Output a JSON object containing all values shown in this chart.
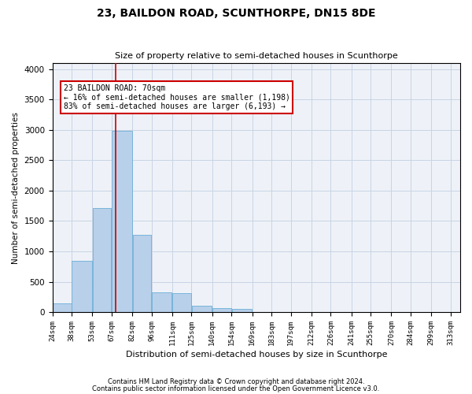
{
  "title": "23, BAILDON ROAD, SCUNTHORPE, DN15 8DE",
  "subtitle": "Size of property relative to semi-detached houses in Scunthorpe",
  "xlabel": "Distribution of semi-detached houses by size in Scunthorpe",
  "ylabel": "Number of semi-detached properties",
  "footer1": "Contains HM Land Registry data © Crown copyright and database right 2024.",
  "footer2": "Contains public sector information licensed under the Open Government Licence v3.0.",
  "annotation_title": "23 BAILDON ROAD: 70sqm",
  "annotation_line1": "← 16% of semi-detached houses are smaller (1,198)",
  "annotation_line2": "83% of semi-detached houses are larger (6,193) →",
  "subject_size": 70,
  "bar_left_edges": [
    24,
    38,
    53,
    67,
    82,
    96,
    111,
    125,
    140,
    154,
    169,
    183,
    197,
    212,
    226,
    241,
    255,
    270,
    284,
    299
  ],
  "bar_widths": [
    14,
    15,
    14,
    15,
    14,
    15,
    14,
    15,
    14,
    15,
    14,
    14,
    15,
    14,
    15,
    14,
    15,
    14,
    15,
    14
  ],
  "bar_heights": [
    150,
    850,
    1720,
    2980,
    1270,
    320,
    310,
    100,
    70,
    55,
    0,
    0,
    0,
    0,
    0,
    0,
    0,
    0,
    0,
    0
  ],
  "tick_labels": [
    "24sqm",
    "38sqm",
    "53sqm",
    "67sqm",
    "82sqm",
    "96sqm",
    "111sqm",
    "125sqm",
    "140sqm",
    "154sqm",
    "169sqm",
    "183sqm",
    "197sqm",
    "212sqm",
    "226sqm",
    "241sqm",
    "255sqm",
    "270sqm",
    "284sqm",
    "299sqm",
    "313sqm"
  ],
  "tick_positions": [
    24,
    38,
    53,
    67,
    82,
    96,
    111,
    125,
    140,
    154,
    169,
    183,
    197,
    212,
    226,
    241,
    255,
    270,
    284,
    299,
    313
  ],
  "bar_color": "#b8d0ea",
  "bar_edge_color": "#6baed6",
  "vline_color": "#cc0000",
  "annotation_box_edge": "#cc0000",
  "grid_color": "#c8d4e4",
  "bg_color": "#eef2f8",
  "ylim": [
    0,
    4100
  ],
  "yticks": [
    0,
    500,
    1000,
    1500,
    2000,
    2500,
    3000,
    3500,
    4000
  ]
}
